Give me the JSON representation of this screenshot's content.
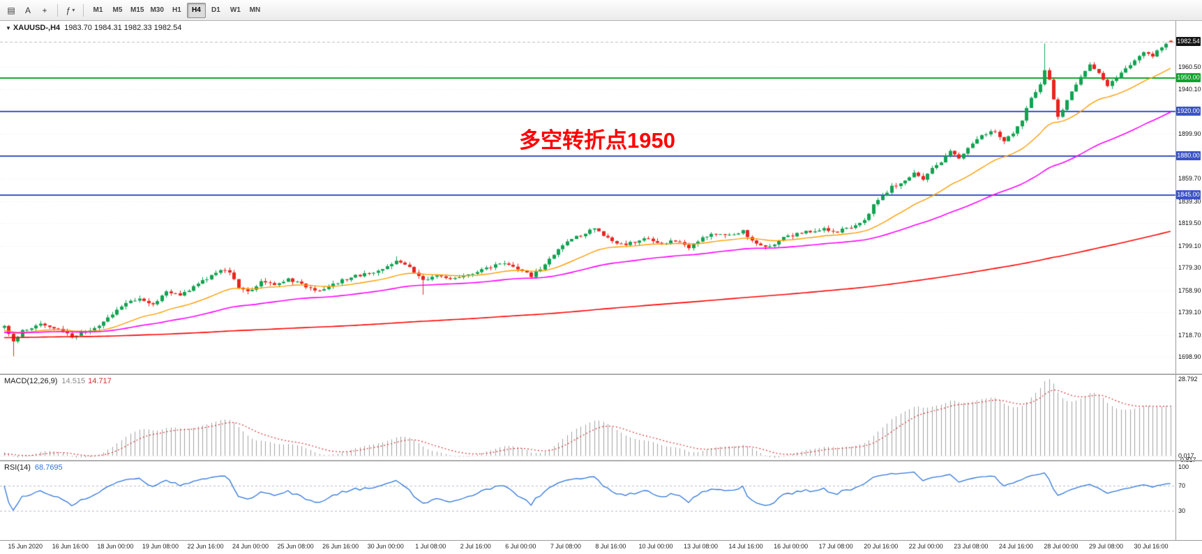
{
  "toolbar": {
    "icons": [
      {
        "name": "chart-window-icon",
        "glyph": "▤"
      },
      {
        "name": "text-label-icon",
        "glyph": "A"
      },
      {
        "name": "crosshair-icon",
        "glyph": "+"
      },
      {
        "name": "indicators-icon",
        "glyph": "ƒ"
      },
      {
        "name": "dropdown-caret-icon",
        "glyph": "▾"
      }
    ],
    "timeframes": [
      "M1",
      "M5",
      "M15",
      "M30",
      "H1",
      "H4",
      "D1",
      "W1",
      "MN"
    ],
    "active_timeframe": "H4"
  },
  "main_chart": {
    "collapse_icon": "▼",
    "info_symbol": "XAUUSD-,H4",
    "info_ohlc": "1983.70 1984.31 1982.33 1982.54",
    "annotation": "多空转折点1950",
    "annotation_color": "#ff0000"
  },
  "macd_panel": {
    "name": "MACD(12,26,9)",
    "value_main": "14.515",
    "value_signal": "14.717",
    "axis_labels": [
      {
        "text": "28.792",
        "pos": "max"
      },
      {
        "text": "0.017",
        "pos": "zero"
      },
      {
        "text": "-0.817",
        "pos": "min"
      }
    ]
  },
  "rsi_panel": {
    "name": "RSI(14)",
    "value": "68.7695",
    "levels": [
      {
        "text": "100",
        "value": 100
      },
      {
        "text": "70",
        "value": 70
      },
      {
        "text": "30",
        "value": 30
      }
    ]
  },
  "price_axis": {
    "labels": [
      "1960.50",
      "1940.10",
      "1899.90",
      "1859.70",
      "1839.30",
      "1819.50",
      "1799.10",
      "1779.30",
      "1758.90",
      "1739.10",
      "1718.70",
      "1698.90"
    ],
    "badges": [
      {
        "text": "1982.54",
        "price": 1982.54,
        "bg": "#151515",
        "type": "current-price"
      },
      {
        "text": "1950.00",
        "price": 1950.0,
        "bg": "#0ca32a",
        "type": "line-level"
      },
      {
        "text": "1920.00",
        "price": 1920.0,
        "bg": "#3a53c8",
        "type": "line-level"
      },
      {
        "text": "1880.00",
        "price": 1880.0,
        "bg": "#3a53c8",
        "type": "line-level"
      },
      {
        "text": "1845.00",
        "price": 1845.0,
        "bg": "#3a53c8",
        "type": "line-level"
      }
    ]
  },
  "chart_data": [
    {
      "type": "candlestick",
      "symbol": "XAUUSD-",
      "timeframe": "H4",
      "title": "XAUUSD-,H4",
      "current_ohlc": {
        "open": 1983.7,
        "high": 1984.31,
        "low": 1982.33,
        "close": 1982.54
      },
      "y_range": [
        1684,
        2001
      ],
      "visible_candles": 260,
      "prehistory_candles": 300,
      "seed": 42,
      "jitter": 2.4,
      "wick": 2.8,
      "up_color": "#12a352",
      "down_color": "#e8251f",
      "annotation": "多空转折点1950",
      "hlines": [
        {
          "price": 1950.0,
          "color": "#0ca32a",
          "width": 2,
          "label": "1950.00"
        },
        {
          "price": 1920.0,
          "color": "#3a53c8",
          "width": 2,
          "label": "1920.00"
        },
        {
          "price": 1880.0,
          "color": "#3a53c8",
          "width": 2,
          "label": "1880.00"
        },
        {
          "price": 1845.0,
          "color": "#3a53c8",
          "width": 2,
          "label": "1845.00"
        }
      ],
      "moving_averages": [
        {
          "kind": "ema",
          "period": 24,
          "color": "#ff9d00",
          "width": 1.4
        },
        {
          "kind": "ema",
          "period": 66,
          "color": "#ff00ff",
          "width": 1.6
        },
        {
          "kind": "sma",
          "period": 260,
          "color": "#ff0000",
          "width": 1.6
        }
      ],
      "anchors": [
        [
          -300,
          1715
        ],
        [
          -250,
          1707
        ],
        [
          -200,
          1718
        ],
        [
          -150,
          1711
        ],
        [
          -100,
          1722
        ],
        [
          -60,
          1715
        ],
        [
          -30,
          1724
        ],
        [
          -10,
          1719
        ],
        [
          0,
          1727
        ],
        [
          2,
          1712
        ],
        [
          4,
          1722
        ],
        [
          8,
          1728
        ],
        [
          12,
          1725
        ],
        [
          15,
          1717
        ],
        [
          18,
          1722
        ],
        [
          21,
          1726
        ],
        [
          24,
          1738
        ],
        [
          27,
          1748
        ],
        [
          30,
          1752
        ],
        [
          33,
          1746
        ],
        [
          36,
          1758
        ],
        [
          39,
          1755
        ],
        [
          42,
          1762
        ],
        [
          45,
          1770
        ],
        [
          48,
          1778
        ],
        [
          50,
          1775
        ],
        [
          52,
          1762
        ],
        [
          54,
          1757
        ],
        [
          57,
          1766
        ],
        [
          60,
          1764
        ],
        [
          63,
          1769
        ],
        [
          66,
          1764
        ],
        [
          69,
          1758
        ],
        [
          72,
          1762
        ],
        [
          75,
          1768
        ],
        [
          78,
          1772
        ],
        [
          81,
          1774
        ],
        [
          84,
          1778
        ],
        [
          87,
          1786
        ],
        [
          90,
          1780
        ],
        [
          93,
          1768
        ],
        [
          96,
          1772
        ],
        [
          99,
          1770
        ],
        [
          102,
          1772
        ],
        [
          105,
          1776
        ],
        [
          108,
          1780
        ],
        [
          111,
          1784
        ],
        [
          114,
          1778
        ],
        [
          117,
          1772
        ],
        [
          120,
          1782
        ],
        [
          123,
          1796
        ],
        [
          126,
          1806
        ],
        [
          129,
          1810
        ],
        [
          131,
          1815
        ],
        [
          134,
          1806
        ],
        [
          137,
          1800
        ],
        [
          140,
          1802
        ],
        [
          143,
          1806
        ],
        [
          146,
          1800
        ],
        [
          149,
          1804
        ],
        [
          152,
          1797
        ],
        [
          155,
          1806
        ],
        [
          158,
          1810
        ],
        [
          161,
          1808
        ],
        [
          164,
          1812
        ],
        [
          167,
          1800
        ],
        [
          170,
          1798
        ],
        [
          173,
          1806
        ],
        [
          176,
          1810
        ],
        [
          179,
          1812
        ],
        [
          182,
          1814
        ],
        [
          185,
          1812
        ],
        [
          188,
          1816
        ],
        [
          191,
          1822
        ],
        [
          193,
          1836
        ],
        [
          195,
          1844
        ],
        [
          197,
          1852
        ],
        [
          200,
          1858
        ],
        [
          202,
          1864
        ],
        [
          204,
          1858
        ],
        [
          206,
          1868
        ],
        [
          208,
          1874
        ],
        [
          210,
          1884
        ],
        [
          212,
          1878
        ],
        [
          214,
          1888
        ],
        [
          216,
          1896
        ],
        [
          218,
          1900
        ],
        [
          220,
          1902
        ],
        [
          222,
          1894
        ],
        [
          224,
          1900
        ],
        [
          226,
          1912
        ],
        [
          228,
          1932
        ],
        [
          230,
          1944
        ],
        [
          231,
          1958
        ],
        [
          232,
          1948
        ],
        [
          233,
          1930
        ],
        [
          234,
          1916
        ],
        [
          235,
          1922
        ],
        [
          237,
          1938
        ],
        [
          239,
          1952
        ],
        [
          241,
          1962
        ],
        [
          243,
          1954
        ],
        [
          245,
          1944
        ],
        [
          247,
          1950
        ],
        [
          249,
          1958
        ],
        [
          251,
          1966
        ],
        [
          253,
          1974
        ],
        [
          255,
          1970
        ],
        [
          257,
          1978
        ],
        [
          259,
          1982.54
        ]
      ],
      "overrides": {
        "2": {
          "l": 1699.5
        },
        "87": {
          "h": 1789.5
        },
        "93": {
          "l": 1755.0
        },
        "231": {
          "h": 1981.3
        },
        "259": {
          "o": 1983.7,
          "h": 1984.31,
          "l": 1982.33,
          "c": 1982.54
        }
      },
      "time_labels": [
        "15 Jun 2020",
        "16 Jun 16:00",
        "18 Jun 00:00",
        "19 Jun 08:00",
        "22 Jun 16:00",
        "24 Jun 00:00",
        "25 Jun 08:00",
        "26 Jun 16:00",
        "30 Jun 00:00",
        "1 Jul 08:00",
        "2 Jul 16:00",
        "6 Jul 00:00",
        "7 Jul 08:00",
        "8 Jul 16:00",
        "10 Jul 00:00",
        "13 Jul 08:00",
        "14 Jul 16:00",
        "16 Jul 00:00",
        "17 Jul 08:00",
        "20 Jul 16:00",
        "22 Jul 00:00",
        "23 Jul 08:00",
        "24 Jul 16:00",
        "28 Jul 00:00",
        "29 Jul 08:00",
        "30 Jul 16:00"
      ]
    },
    {
      "type": "macd",
      "params": [
        12,
        26,
        9
      ],
      "current_values": [
        14.515,
        14.717
      ],
      "max_axis_value": 28.792,
      "zero_axis_value": 0.017,
      "histogram_color": "#a0a0a0",
      "signal_color": "#d23030",
      "derived_from": "candlestick closes"
    },
    {
      "type": "rsi",
      "period": 14,
      "current_value": 68.7695,
      "color": "#2d74da",
      "levels": [
        100,
        70,
        30
      ],
      "derived_from": "candlestick closes"
    }
  ]
}
